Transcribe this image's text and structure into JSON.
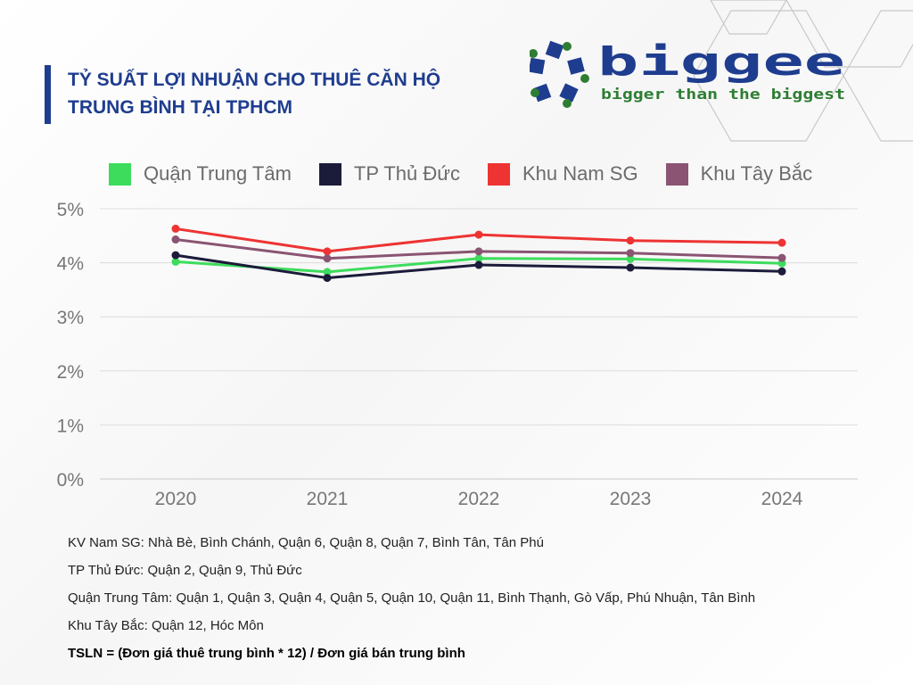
{
  "header": {
    "title_line1": "TỶ SUẤT LỢI NHUẬN CHO THUÊ CĂN HỘ",
    "title_line2": "TRUNG BÌNH TẠI TPHCM"
  },
  "brand": {
    "name": "biggee",
    "tagline": "bigger than the biggest",
    "logo_icon": "pentagon-squares-logo",
    "colors": {
      "navy": "#1f3d8f",
      "green": "#2e7d32"
    }
  },
  "chart_data": {
    "type": "line",
    "categories": [
      "2020",
      "2021",
      "2022",
      "2023",
      "2024"
    ],
    "y_ticks": [
      "0%",
      "1%",
      "2%",
      "3%",
      "4%",
      "5%"
    ],
    "ylim": [
      0,
      5
    ],
    "grid": true,
    "legend_position": "top",
    "series": [
      {
        "name": "Quận Trung Tâm",
        "color": "#3ddc5c",
        "values": [
          4.02,
          3.83,
          4.08,
          4.07,
          3.99
        ]
      },
      {
        "name": "TP Thủ Đức",
        "color": "#1b1b3a",
        "values": [
          4.14,
          3.72,
          3.96,
          3.91,
          3.84
        ]
      },
      {
        "name": "Khu Nam SG",
        "color": "#ee3333",
        "values": [
          4.63,
          4.21,
          4.52,
          4.41,
          4.37
        ]
      },
      {
        "name": "Khu Tây Bắc",
        "color": "#8a5472",
        "values": [
          4.43,
          4.08,
          4.21,
          4.18,
          4.09
        ]
      }
    ]
  },
  "notes": {
    "line1": "KV Nam SG: Nhà Bè, Bình Chánh, Quận 6, Quận 8, Quận 7, Bình Tân, Tân Phú",
    "line2": "TP Thủ Đức: Quận 2, Quận 9, Thủ Đức",
    "line3": "Quận Trung Tâm: Quận 1, Quận 3, Quận 4, Quận 5, Quận 10, Quận 11, Bình Thạnh, Gò Vấp, Phú Nhuận, Tân Bình",
    "line4": "Khu Tây Bắc: Quận 12, Hóc Môn",
    "formula": "TSLN = (Đơn giá thuê trung bình * 12) / Đơn giá bán trung bình"
  }
}
